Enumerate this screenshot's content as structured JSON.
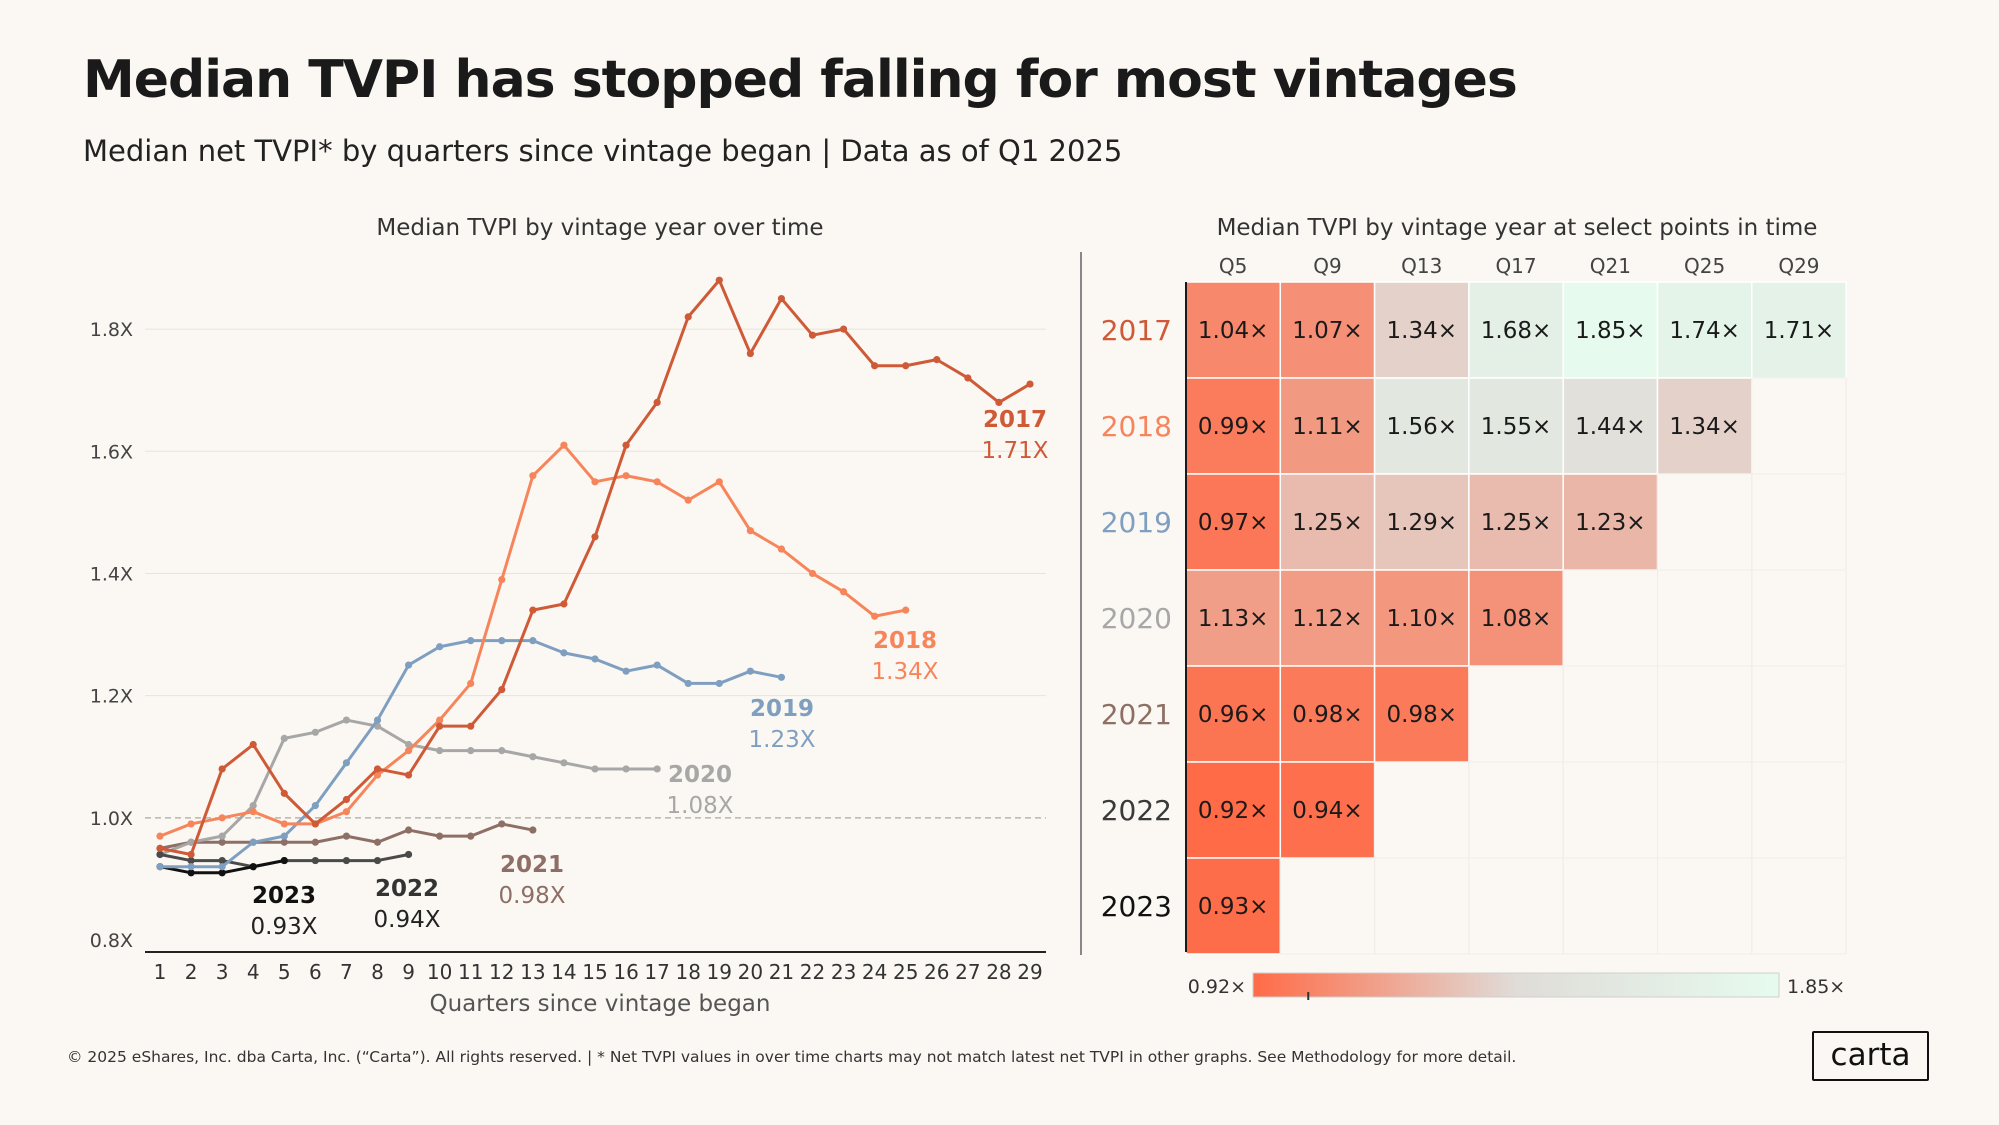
{
  "title": "Median TVPI has stopped falling for most vintages",
  "subtitle": "Median net TVPI* by quarters since vintage began | Data as of Q1 2025",
  "footer": "© 2025 eShares, Inc. dba Carta, Inc. (“Carta”). All rights reserved.  |  * Net TVPI values in over time charts may not match latest net TVPI in other  graphs. See Methodology for more detail.",
  "logo_text": "carta",
  "chart_data": [
    {
      "type": "line",
      "title": "Median TVPI by vintage year over time",
      "xlabel": "Quarters since vintage began",
      "ylabel": "",
      "x_ticks": [
        1,
        2,
        3,
        4,
        5,
        6,
        7,
        8,
        9,
        10,
        11,
        12,
        13,
        14,
        15,
        16,
        17,
        18,
        19,
        20,
        21,
        22,
        23,
        24,
        25,
        26,
        27,
        28,
        29
      ],
      "y_ticks": [
        {
          "value": 0.8,
          "label": "0.8X"
        },
        {
          "value": 1.0,
          "label": "1.0X"
        },
        {
          "value": 1.2,
          "label": "1.2X"
        },
        {
          "value": 1.4,
          "label": "1.4X"
        },
        {
          "value": 1.6,
          "label": "1.6X"
        },
        {
          "value": 1.8,
          "label": "1.8X"
        }
      ],
      "ylim": [
        0.8,
        1.9
      ],
      "xlim": [
        1,
        29
      ],
      "reference_line": 1.0,
      "series": [
        {
          "name": "2017",
          "end_label": "1.71X",
          "color": "#cf5a37",
          "values": [
            0.95,
            0.94,
            1.08,
            1.12,
            1.04,
            0.99,
            1.03,
            1.08,
            1.07,
            1.15,
            1.15,
            1.21,
            1.34,
            1.35,
            1.46,
            1.61,
            1.68,
            1.82,
            1.88,
            1.76,
            1.85,
            1.79,
            1.8,
            1.74,
            1.74,
            1.75,
            1.72,
            1.68,
            1.71
          ]
        },
        {
          "name": "2018",
          "end_label": "1.34X",
          "color": "#f7855c",
          "values": [
            0.97,
            0.99,
            1.0,
            1.01,
            0.99,
            0.99,
            1.01,
            1.07,
            1.11,
            1.16,
            1.22,
            1.39,
            1.56,
            1.61,
            1.55,
            1.56,
            1.55,
            1.52,
            1.55,
            1.47,
            1.44,
            1.4,
            1.37,
            1.33,
            1.34
          ]
        },
        {
          "name": "2019",
          "end_label": "1.23X",
          "color": "#7f9fc1",
          "values": [
            0.92,
            0.92,
            0.92,
            0.96,
            0.97,
            1.02,
            1.09,
            1.16,
            1.25,
            1.28,
            1.29,
            1.29,
            1.29,
            1.27,
            1.26,
            1.24,
            1.25,
            1.22,
            1.22,
            1.24,
            1.23
          ]
        },
        {
          "name": "2020",
          "end_label": "1.08X",
          "color": "#a7a7a7",
          "values": [
            0.94,
            0.96,
            0.97,
            1.02,
            1.13,
            1.14,
            1.16,
            1.15,
            1.12,
            1.11,
            1.11,
            1.11,
            1.1,
            1.09,
            1.08,
            1.08,
            1.08
          ]
        },
        {
          "name": "2021",
          "end_label": "0.98X",
          "color": "#8e6f66",
          "values": [
            0.95,
            0.96,
            0.96,
            0.96,
            0.96,
            0.96,
            0.97,
            0.96,
            0.98,
            0.97,
            0.97,
            0.99,
            0.98
          ]
        },
        {
          "name": "2022",
          "end_label": "0.94X",
          "color": "#4a4a4a",
          "values": [
            0.94,
            0.93,
            0.93,
            0.92,
            0.93,
            0.93,
            0.93,
            0.93,
            0.94
          ]
        },
        {
          "name": "2023",
          "end_label": "0.93X",
          "color": "#111111",
          "values": [
            0.92,
            0.91,
            0.91,
            0.92,
            0.93
          ]
        }
      ]
    },
    {
      "type": "heatmap",
      "title": "Median TVPI by vintage year at select points in time",
      "columns": [
        "Q5",
        "Q9",
        "Q13",
        "Q17",
        "Q21",
        "Q25",
        "Q29"
      ],
      "rows": [
        {
          "name": "2017",
          "color": "#cf5a37",
          "values": [
            "1.04×",
            "1.07×",
            "1.34×",
            "1.68×",
            "1.85×",
            "1.74×",
            "1.71×"
          ]
        },
        {
          "name": "2018",
          "color": "#f7855c",
          "values": [
            "0.99×",
            "1.11×",
            "1.56×",
            "1.55×",
            "1.44×",
            "1.34×"
          ]
        },
        {
          "name": "2019",
          "color": "#7f9fc1",
          "values": [
            "0.97×",
            "1.25×",
            "1.29×",
            "1.25×",
            "1.23×"
          ]
        },
        {
          "name": "2020",
          "color": "#a7a7a7",
          "values": [
            "1.13×",
            "1.12×",
            "1.10×",
            "1.08×"
          ]
        },
        {
          "name": "2021",
          "color": "#8e6f66",
          "values": [
            "0.96×",
            "0.98×",
            "0.98×"
          ]
        },
        {
          "name": "2022",
          "color": "#3a3a3a",
          "values": [
            "0.92×",
            "0.94×"
          ]
        },
        {
          "name": "2023",
          "color": "#111111",
          "values": [
            "0.93×"
          ]
        }
      ],
      "scale_min_label": "0.92×",
      "scale_max_label": "1.85×",
      "scale_min": 0.92,
      "scale_max": 1.85,
      "scale_colors": [
        "#ff6b47",
        "#e0dcd8",
        "#e6fbee"
      ]
    }
  ]
}
